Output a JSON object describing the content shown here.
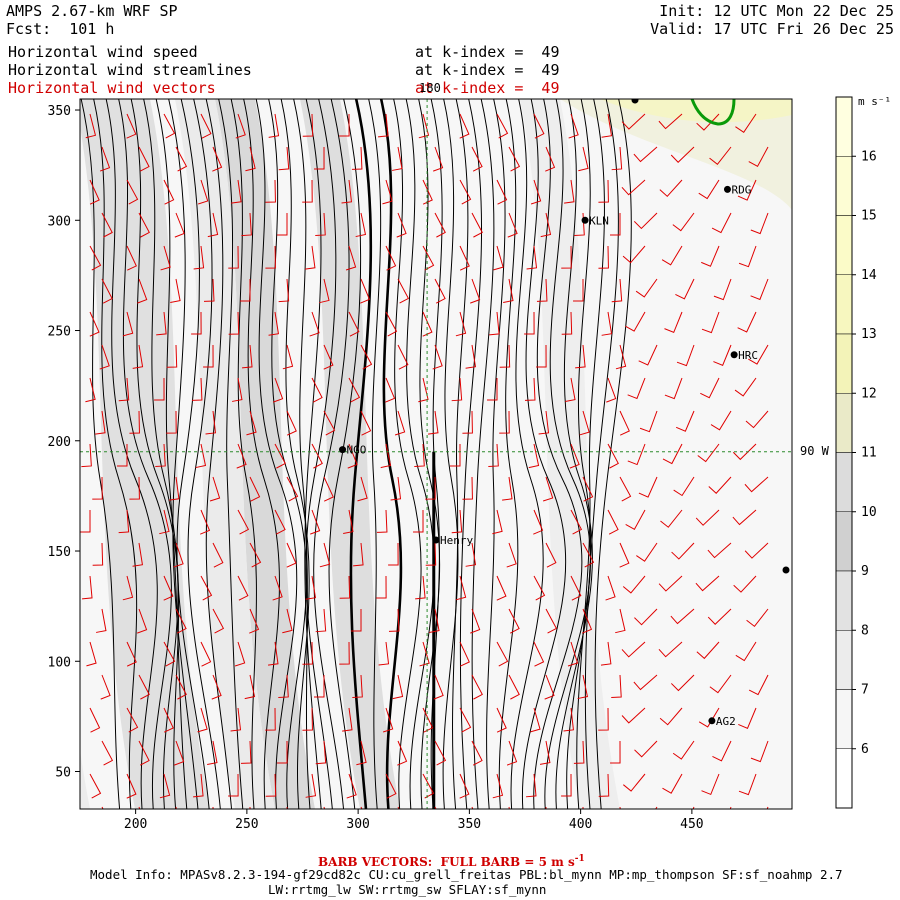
{
  "header": {
    "model": "AMPS 2.67-km WRF SP",
    "forecast": "Fcst:  101 h",
    "init": "Init: 12 UTC Mon 22 Dec 25",
    "valid": "Valid: 17 UTC Fri 26 Dec 25"
  },
  "fields": [
    {
      "name": "Horizontal wind speed",
      "level": "at k-index =  49",
      "color": "#000000"
    },
    {
      "name": "Horizontal wind streamlines",
      "level": "at k-index =  49",
      "color": "#000000"
    },
    {
      "name": "Horizontal wind vectors",
      "level": "at k-index =  49",
      "color": "#d00000"
    }
  ],
  "axes": {
    "x_ticks": [
      "200",
      "250",
      "300",
      "350",
      "400",
      "450"
    ],
    "y_ticks": [
      "350",
      "300",
      "250",
      "200",
      "150",
      "100",
      "50"
    ],
    "x_range": [
      175,
      495
    ],
    "y_range": [
      33,
      355
    ],
    "meridian_label": "180",
    "parallel_label": "90 W"
  },
  "stations": [
    {
      "name": "RDG",
      "x": 466,
      "y": 314
    },
    {
      "name": "KLN",
      "x": 402,
      "y": 300
    },
    {
      "name": "HRC",
      "x": 469,
      "y": 239
    },
    {
      "name": "NGO",
      "x": 293,
      "y": 196
    },
    {
      "name": "Henry",
      "x": 335,
      "y": 155
    },
    {
      "name": "AG2",
      "x": 459,
      "y": 73
    }
  ],
  "colorbar": {
    "unit": "m s⁻¹",
    "levels": [
      "16",
      "15",
      "14",
      "13",
      "12",
      "11",
      "10",
      "9",
      "8",
      "7",
      "6"
    ],
    "colors": [
      "#ffffe0",
      "#fdfdd4",
      "#fbfbc8",
      "#f7f7bf",
      "#f3f3b8",
      "#eaeac8",
      "#dcdcdc",
      "#d0d0d0",
      "#e2e2e2",
      "#ececec",
      "#f6f6f6",
      "#ffffff"
    ]
  },
  "footer": {
    "barb_note": "BARB VECTORS:  FULL BARB = 5 m s",
    "barb_exp": "-1",
    "model_info": "Model Info: MPASv8.2.3-194-gf29cd82c CU:cu_grell_freitas PBL:bl_mynn MP:mp_thompson SF:sf_noahmp 2.7",
    "physics": "LW:rrtmg_lw SW:rrtmg_sw SFLAY:sf_mynn"
  }
}
